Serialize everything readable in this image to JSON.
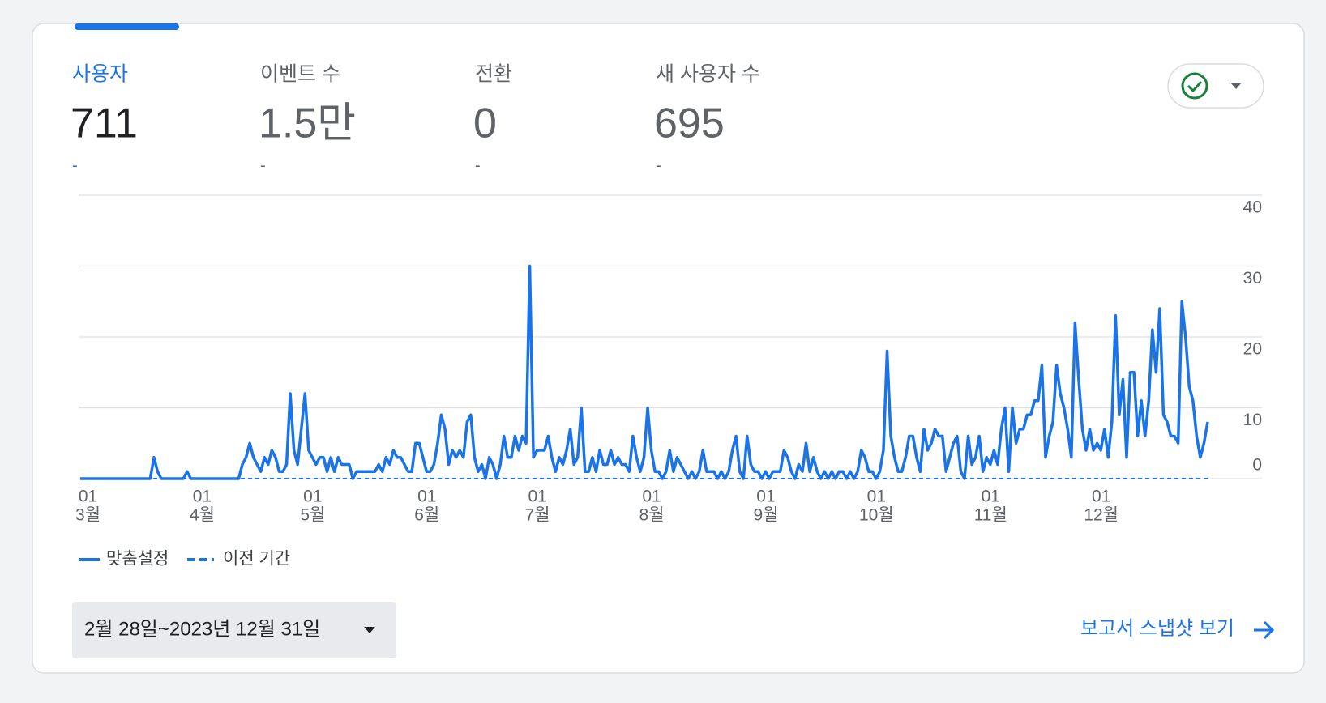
{
  "tabs": [
    {
      "label": "사용자",
      "value": "711",
      "change": "-"
    },
    {
      "label": "이벤트 수",
      "value": "1.5만",
      "change": "-"
    },
    {
      "label": "전환",
      "value": "0",
      "change": "-"
    },
    {
      "label": "새 사용자 수",
      "value": "695",
      "change": "-"
    }
  ],
  "chart_data": {
    "type": "line",
    "categories": [
      null,
      [
        "01",
        "3월"
      ],
      null,
      null,
      null,
      null,
      null,
      null,
      null,
      null,
      null,
      null,
      null,
      null,
      null,
      null,
      null,
      null,
      null,
      null,
      null,
      null,
      null,
      null,
      null,
      null,
      null,
      null,
      null,
      null,
      null,
      null,
      [
        "01",
        "4월"
      ],
      null,
      null,
      null,
      null,
      null,
      null,
      null,
      null,
      null,
      null,
      null,
      null,
      null,
      null,
      null,
      null,
      null,
      null,
      null,
      null,
      null,
      null,
      null,
      null,
      null,
      null,
      null,
      null,
      null,
      [
        "01",
        "5월"
      ],
      null,
      null,
      null,
      null,
      null,
      null,
      null,
      null,
      null,
      null,
      null,
      null,
      null,
      null,
      null,
      null,
      null,
      null,
      null,
      null,
      null,
      null,
      null,
      null,
      null,
      null,
      null,
      null,
      null,
      null,
      [
        "01",
        "6월"
      ],
      null,
      null,
      null,
      null,
      null,
      null,
      null,
      null,
      null,
      null,
      null,
      null,
      null,
      null,
      null,
      null,
      null,
      null,
      null,
      null,
      null,
      null,
      null,
      null,
      null,
      null,
      null,
      null,
      null,
      [
        "01",
        "7월"
      ],
      null,
      null,
      null,
      null,
      null,
      null,
      null,
      null,
      null,
      null,
      null,
      null,
      null,
      null,
      null,
      null,
      null,
      null,
      null,
      null,
      null,
      null,
      null,
      null,
      null,
      null,
      null,
      null,
      null,
      null,
      [
        "01",
        "8월"
      ],
      null,
      null,
      null,
      null,
      null,
      null,
      null,
      null,
      null,
      null,
      null,
      null,
      null,
      null,
      null,
      null,
      null,
      null,
      null,
      null,
      null,
      null,
      null,
      null,
      null,
      null,
      null,
      null,
      null,
      null,
      [
        "01",
        "9월"
      ],
      null,
      null,
      null,
      null,
      null,
      null,
      null,
      null,
      null,
      null,
      null,
      null,
      null,
      null,
      null,
      null,
      null,
      null,
      null,
      null,
      null,
      null,
      null,
      null,
      null,
      null,
      null,
      null,
      null,
      [
        "01",
        "10월"
      ],
      null,
      null,
      null,
      null,
      null,
      null,
      null,
      null,
      null,
      null,
      null,
      null,
      null,
      null,
      null,
      null,
      null,
      null,
      null,
      null,
      null,
      null,
      null,
      null,
      null,
      null,
      null,
      null,
      null,
      null,
      [
        "01",
        "11월"
      ],
      null,
      null,
      null,
      null,
      null,
      null,
      null,
      null,
      null,
      null,
      null,
      null,
      null,
      null,
      null,
      null,
      null,
      null,
      null,
      null,
      null,
      null,
      null,
      null,
      null,
      null,
      null,
      null,
      null,
      [
        "01",
        "12월"
      ],
      null,
      null,
      null,
      null,
      null,
      null,
      null,
      null,
      null,
      null,
      null,
      null,
      null,
      null,
      null,
      null,
      null,
      null,
      null,
      null,
      null,
      null,
      null,
      null,
      null,
      null,
      null,
      null,
      null,
      null
    ],
    "series": [
      {
        "name": "맞춤설정",
        "color": "#1a73e8",
        "dashed": false,
        "values": [
          0,
          0,
          0,
          0,
          0,
          0,
          0,
          0,
          0,
          0,
          0,
          0,
          0,
          0,
          0,
          0,
          0,
          0,
          0,
          0,
          3,
          1,
          0,
          0,
          0,
          0,
          0,
          0,
          0,
          1,
          0,
          0,
          0,
          0,
          0,
          0,
          0,
          0,
          0,
          0,
          0,
          0,
          0,
          0,
          2,
          3,
          5,
          3,
          2,
          1,
          3,
          2,
          4,
          3,
          1,
          1,
          2,
          12,
          4,
          2,
          7,
          12,
          4,
          3,
          2,
          3,
          3,
          1,
          3,
          1,
          3,
          2,
          2,
          2,
          0,
          1,
          1,
          1,
          1,
          1,
          1,
          2,
          1,
          3,
          2,
          4,
          3,
          3,
          2,
          1,
          1,
          5,
          5,
          3,
          1,
          1,
          2,
          5,
          9,
          7,
          2,
          4,
          3,
          4,
          3,
          8,
          9,
          3,
          1,
          2,
          0,
          3,
          2,
          0,
          2,
          6,
          3,
          3,
          6,
          4,
          6,
          5,
          30,
          3,
          4,
          4,
          4,
          6,
          3,
          1,
          3,
          2,
          4,
          7,
          2,
          3,
          10,
          1,
          1,
          3,
          1,
          4,
          2,
          2,
          4,
          2,
          3,
          2,
          2,
          1,
          6,
          3,
          1,
          3,
          10,
          4,
          1,
          1,
          0,
          1,
          4,
          1,
          3,
          2,
          1,
          0,
          1,
          0,
          1,
          4,
          1,
          1,
          1,
          0,
          1,
          0,
          1,
          4,
          6,
          1,
          0,
          6,
          2,
          1,
          1,
          0,
          1,
          0,
          1,
          1,
          1,
          4,
          3,
          1,
          0,
          2,
          1,
          5,
          1,
          3,
          1,
          0,
          1,
          0,
          1,
          0,
          1,
          1,
          0,
          1,
          0,
          1,
          4,
          3,
          1,
          1,
          0,
          1,
          4,
          18,
          6,
          3,
          1,
          1,
          3,
          6,
          6,
          3,
          1,
          7,
          4,
          5,
          7,
          6,
          6,
          1,
          3,
          5,
          6,
          1,
          0,
          6,
          2,
          3,
          6,
          1,
          3,
          2,
          4,
          2,
          7,
          10,
          1,
          10,
          5,
          7,
          7,
          9,
          9,
          11,
          11,
          16,
          3,
          6,
          8,
          16,
          12,
          10,
          7,
          3,
          22,
          14,
          7,
          4,
          7,
          4,
          5,
          4,
          7,
          3,
          8,
          23,
          9,
          14,
          3,
          15,
          15,
          6,
          11,
          6,
          11,
          21,
          15,
          24,
          9,
          8,
          6,
          6,
          5,
          25,
          20,
          13,
          11,
          6,
          3,
          5,
          8
        ]
      },
      {
        "name": "이전 기간",
        "color": "#1a73e8",
        "dashed": true,
        "values": [
          0,
          0,
          0,
          0,
          0,
          0,
          0,
          0,
          0,
          0,
          0,
          0,
          0,
          0,
          0,
          0,
          0,
          0,
          0,
          0,
          0,
          0,
          0,
          0,
          0,
          0,
          0,
          0,
          0,
          0,
          0,
          0,
          0,
          0,
          0,
          0,
          0,
          0,
          0,
          0,
          0,
          0,
          0,
          0,
          0,
          0,
          0,
          0,
          0,
          0,
          0,
          0,
          0,
          0,
          0,
          0,
          0,
          0,
          0,
          0,
          0,
          0,
          0,
          0,
          0,
          0,
          0,
          0,
          0,
          0,
          0,
          0,
          0,
          0,
          0,
          0,
          0,
          0,
          0,
          0,
          0,
          0,
          0,
          0,
          0,
          0,
          0,
          0,
          0,
          0,
          0,
          0,
          0,
          0,
          0,
          0,
          0,
          0,
          0,
          0,
          0,
          0,
          0,
          0,
          0,
          0,
          0,
          0,
          0,
          0,
          0,
          0,
          0,
          0,
          0,
          0,
          0,
          0,
          0,
          0,
          0,
          0,
          0,
          0,
          0,
          0,
          0,
          0,
          0,
          0,
          0,
          0,
          0,
          0,
          0,
          0,
          0,
          0,
          0,
          0,
          0,
          0,
          0,
          0,
          0,
          0,
          0,
          0,
          0,
          0,
          0,
          0,
          0,
          0,
          0,
          0,
          0,
          0,
          0,
          0,
          0,
          0,
          0,
          0,
          0,
          0,
          0,
          0,
          0,
          0,
          0,
          0,
          0,
          0,
          0,
          0,
          0,
          0,
          0,
          0,
          0,
          0,
          0,
          0,
          0,
          0,
          0,
          0,
          0,
          0,
          0,
          0,
          0,
          0,
          0,
          0,
          0,
          0,
          0,
          0,
          0,
          0,
          0,
          0,
          0,
          0,
          0,
          0,
          0,
          0,
          0,
          0,
          0,
          0,
          0,
          0,
          0,
          0,
          0,
          0,
          0,
          0,
          0,
          0,
          0,
          0,
          0,
          0,
          0,
          0,
          0,
          0,
          0,
          0,
          0,
          0,
          0,
          0,
          0,
          0,
          0,
          0,
          0,
          0,
          0,
          0,
          0,
          0,
          0,
          0,
          0,
          0,
          0,
          0,
          0,
          0,
          0,
          0,
          0,
          0,
          0,
          0,
          0,
          0,
          0,
          0,
          0,
          0,
          0,
          0,
          0,
          0,
          0,
          0,
          0,
          0,
          0,
          0,
          0,
          0,
          0,
          0,
          0,
          0,
          0,
          0,
          0,
          0,
          0,
          0,
          0,
          0,
          0,
          0,
          0,
          0,
          0,
          0,
          0,
          0,
          0,
          0,
          0,
          0,
          0,
          0,
          0
        ]
      }
    ],
    "ylim": [
      0,
      40
    ],
    "yticks": [
      0,
      10,
      20,
      30,
      40
    ],
    "grid": true,
    "y_axis_side": "right"
  },
  "date_range": "2월 28일~2023년 12월 31일",
  "snapshot_link": "보고서 스냅샷 보기"
}
